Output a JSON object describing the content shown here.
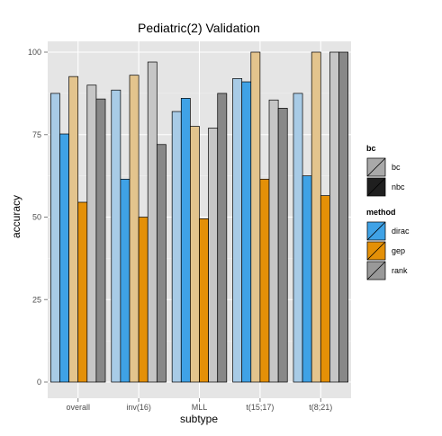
{
  "chart_data": {
    "type": "bar",
    "title": "Pediatric(2) Validation",
    "xlabel": "subtype",
    "ylabel": "accuracy",
    "ylim": [
      0,
      104
    ],
    "yticks": [
      0,
      25,
      50,
      75,
      100
    ],
    "grid": true,
    "legend_placement": "right",
    "categories": [
      "overall",
      "inv(16)",
      "MLL",
      "t(15;17)",
      "t(8;21)"
    ],
    "series": [
      {
        "method": "dirac",
        "bc": "bc",
        "values": [
          87.5,
          88.5,
          82.0,
          92.0,
          87.5
        ]
      },
      {
        "method": "dirac",
        "bc": "nbc",
        "values": [
          75.2,
          61.5,
          86.0,
          91.0,
          62.5
        ]
      },
      {
        "method": "gep",
        "bc": "bc",
        "values": [
          92.6,
          93.0,
          77.5,
          100.0,
          100.0
        ]
      },
      {
        "method": "gep",
        "bc": "nbc",
        "values": [
          54.5,
          50.0,
          49.5,
          61.5,
          56.5
        ]
      },
      {
        "method": "rank",
        "bc": "bc",
        "values": [
          90.0,
          97.0,
          77.0,
          85.5,
          100.0
        ]
      },
      {
        "method": "rank",
        "bc": "nbc",
        "values": [
          85.8,
          72.0,
          87.5,
          83.0,
          100.0
        ]
      }
    ],
    "legends": [
      {
        "title": "bc",
        "entries": [
          {
            "label": "bc",
            "fill": "#a9a9a9",
            "stroke": "#000000"
          },
          {
            "label": "nbc",
            "fill": "#1f1f1f",
            "stroke": "#000000"
          }
        ]
      },
      {
        "title": "method",
        "entries": [
          {
            "label": "dirac",
            "fill": "#3fa2e6"
          },
          {
            "label": "gep",
            "fill": "#e49007"
          },
          {
            "label": "rank",
            "fill": "#999999"
          }
        ]
      }
    ],
    "colors": {
      "dirac": {
        "bc": "#a8cbe6",
        "nbc": "#3fa2e6"
      },
      "gep": {
        "bc": "#e3c48d",
        "nbc": "#e49007"
      },
      "rank": {
        "bc": "#c6c6c6",
        "nbc": "#888888"
      },
      "panel_bg": "#e5e5e5",
      "grid_major": "#ffffff",
      "grid_minor": "#f2f2f2",
      "bar_stroke": "#000000"
    }
  }
}
